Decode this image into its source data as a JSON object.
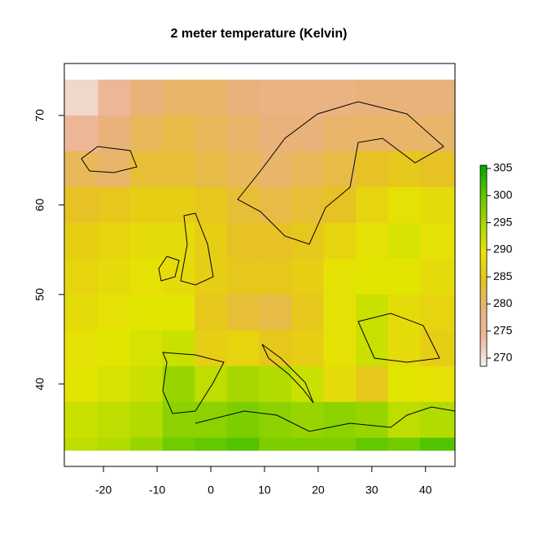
{
  "chart_data": {
    "type": "raster",
    "title": "2 meter temperature (Kelvin)",
    "xlim": [
      -27.3,
      45.5
    ],
    "ylim": [
      30.8,
      75.8
    ],
    "xticks": [
      -20,
      -10,
      0,
      10,
      20,
      30,
      40
    ],
    "yticks": [
      40,
      50,
      60,
      70
    ],
    "x_edges": [
      -27.3,
      -21,
      -15,
      -9,
      -3,
      3,
      9,
      15,
      21,
      27,
      33,
      39,
      45.5
    ],
    "y_edges": [
      74,
      70,
      66,
      62,
      58,
      54,
      50,
      46,
      42,
      38,
      34,
      32.6
    ],
    "values": [
      [
        271,
        275,
        279,
        280,
        280,
        279,
        278,
        278,
        278,
        279,
        279,
        279
      ],
      [
        275,
        279,
        281,
        282,
        281,
        280,
        279,
        279,
        280,
        280,
        280,
        280
      ],
      [
        281,
        280,
        283,
        283,
        282,
        281,
        280,
        281,
        282,
        284,
        285,
        284
      ],
      [
        284,
        285,
        286,
        286,
        285,
        283,
        282,
        283,
        284,
        287,
        289,
        288
      ],
      [
        286,
        287,
        288,
        288,
        286,
        284,
        284,
        285,
        287,
        289,
        291,
        289
      ],
      [
        287,
        288,
        289,
        288,
        286,
        285,
        285,
        286,
        289,
        290,
        290,
        288
      ],
      [
        288,
        289,
        290,
        290,
        285,
        283,
        282,
        285,
        289,
        292,
        288,
        287
      ],
      [
        289,
        290,
        291,
        292,
        286,
        287,
        285,
        286,
        289,
        292,
        288,
        286
      ],
      [
        290,
        291,
        292,
        296,
        293,
        295,
        294,
        292,
        288,
        285,
        290,
        289
      ],
      [
        292,
        293,
        294,
        297,
        297,
        298,
        297,
        296,
        297,
        296,
        293,
        294
      ],
      [
        293,
        294,
        296,
        299,
        300,
        301,
        298,
        298,
        298,
        300,
        299,
        301
      ]
    ],
    "zlim": [
      268.5,
      305.6
    ],
    "zticks": [
      270,
      275,
      280,
      285,
      290,
      295,
      300,
      305
    ],
    "colors": [
      "#f2f2f2",
      "#eeb99f",
      "#e9b27a",
      "#e6c31e",
      "#e6e600",
      "#a6d800",
      "#5ec700",
      "#00a600"
    ]
  }
}
